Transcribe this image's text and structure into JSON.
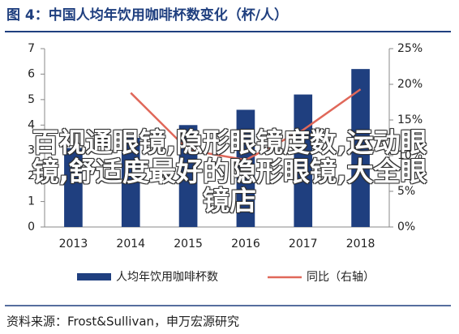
{
  "chart_data": {
    "type": "bar-line",
    "title": "图 4：中国人均年饮用咖啡杯数变化（杯/人）",
    "categories": [
      "2013",
      "2014",
      "2015",
      "2016",
      "2017",
      "2018"
    ],
    "series": [
      {
        "name": "人均年饮用咖啡杯数",
        "color": "#1f3f7f",
        "type": "bar",
        "values": [
          3.1,
          3.5,
          4.0,
          4.6,
          5.2,
          6.2
        ]
      },
      {
        "name": "同比（右轴）",
        "color": "#e0685a",
        "type": "line",
        "axis": "y2",
        "values": [
          null,
          18.8,
          10.8,
          9.4,
          13.6,
          19.3
        ]
      }
    ],
    "ylim": [
      0,
      7
    ],
    "yticks": [
      0,
      1,
      2,
      3,
      4,
      5,
      6,
      7
    ],
    "y2lim": [
      0,
      25
    ],
    "y2ticks": [
      {
        "value": 0,
        "label": "0%"
      },
      {
        "value": 5,
        "label": "5%"
      },
      {
        "value": 10,
        "label": "10%"
      },
      {
        "value": 15,
        "label": "15%"
      },
      {
        "value": 20,
        "label": "20%"
      },
      {
        "value": 25,
        "label": "25%"
      }
    ],
    "source": "资料来源：Frost&Sullivan，申万宏源研究",
    "overlay_text": "百视通眼镜,隐形眼镜度数,运动眼镜,舒适度最好的隐形眼镜,大全眼镜店"
  }
}
